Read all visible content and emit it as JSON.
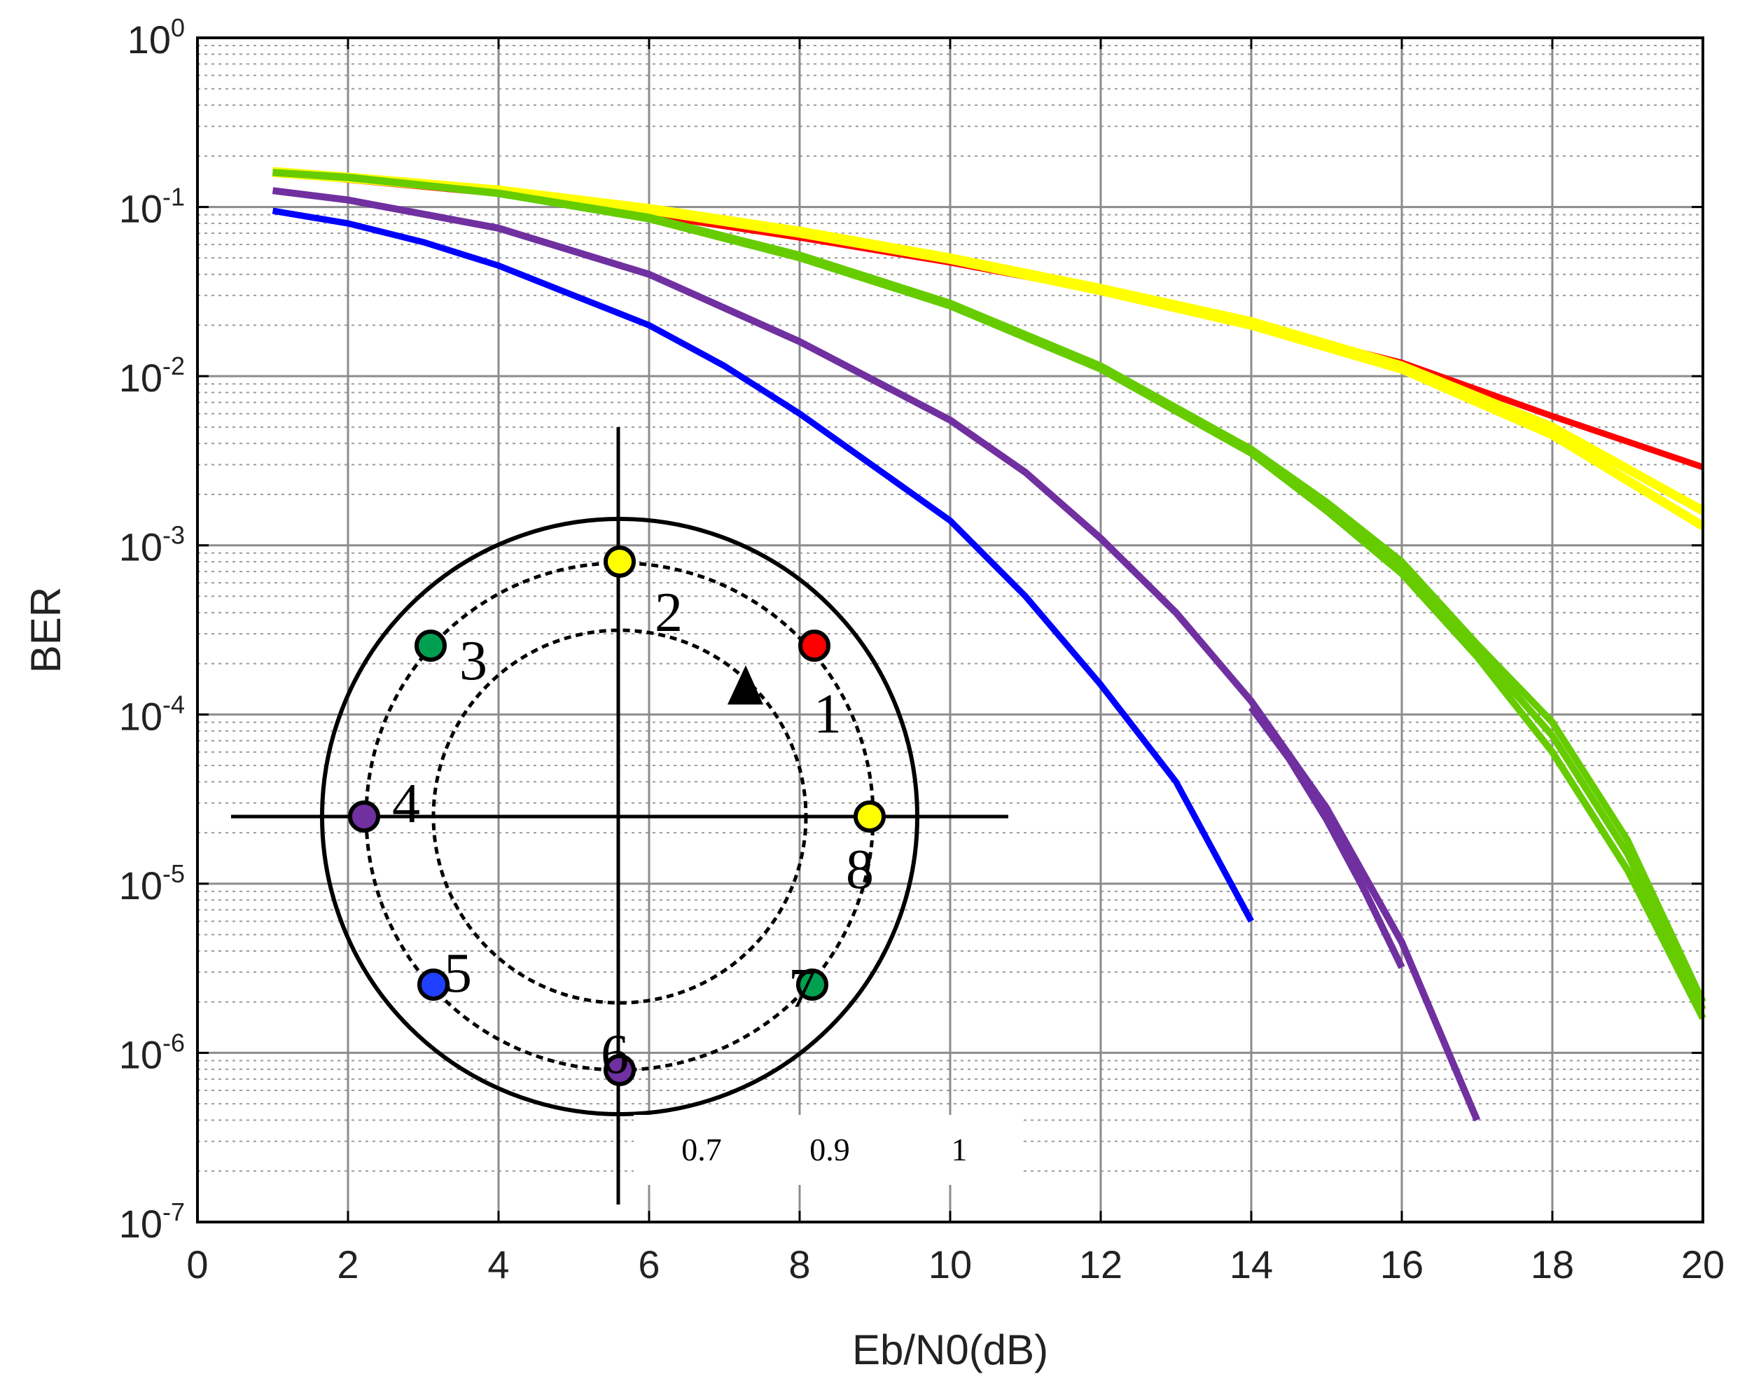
{
  "chart_data": {
    "type": "line",
    "title": "",
    "xlabel": "Eb/N0(dB)",
    "ylabel": "BER",
    "xlim": [
      0,
      20
    ],
    "ylim": [
      1e-07,
      1
    ],
    "yscale": "log",
    "grid": true,
    "minor_grid": true,
    "x_ticks": [
      "0",
      "2",
      "4",
      "6",
      "8",
      "10",
      "12",
      "14",
      "16",
      "18",
      "20"
    ],
    "y_ticks": [
      {
        "base": "10",
        "exp": "0"
      },
      {
        "base": "10",
        "exp": "-1"
      },
      {
        "base": "10",
        "exp": "-2"
      },
      {
        "base": "10",
        "exp": "-3"
      },
      {
        "base": "10",
        "exp": "-4"
      },
      {
        "base": "10",
        "exp": "-5"
      },
      {
        "base": "10",
        "exp": "-6"
      },
      {
        "base": "10",
        "exp": "-7"
      }
    ],
    "series": [
      {
        "color": "#ff0000",
        "width": 9,
        "x": [
          1,
          2,
          4,
          6,
          8,
          10,
          12,
          14,
          16,
          18,
          20
        ],
        "y": [
          0.16,
          0.145,
          0.12,
          0.09,
          0.066,
          0.047,
          0.032,
          0.02,
          0.012,
          0.0058,
          0.0029
        ]
      },
      {
        "color": "#ffff00",
        "width": 13,
        "x": [
          1,
          2,
          4,
          6,
          8,
          10,
          12,
          14,
          16,
          18,
          20
        ],
        "y": [
          0.16,
          0.148,
          0.124,
          0.096,
          0.07,
          0.049,
          0.032,
          0.02,
          0.011,
          0.0045,
          0.0013
        ]
      },
      {
        "color": "#ffff00",
        "width": 13,
        "x": [
          1,
          2,
          4,
          6,
          8,
          10,
          12,
          14,
          16,
          18,
          20
        ],
        "y": [
          0.162,
          0.15,
          0.126,
          0.098,
          0.072,
          0.05,
          0.033,
          0.021,
          0.0115,
          0.005,
          0.0016
        ]
      },
      {
        "color": "#66cc00",
        "width": 10,
        "x": [
          1,
          2,
          4,
          6,
          8,
          10,
          12,
          14,
          15,
          16,
          17,
          18,
          19,
          20
        ],
        "y": [
          0.16,
          0.15,
          0.12,
          0.085,
          0.05,
          0.026,
          0.011,
          0.0035,
          0.0016,
          0.00068,
          0.00022,
          6e-05,
          1.2e-05,
          1.6e-06
        ]
      },
      {
        "color": "#66cc00",
        "width": 10,
        "x": [
          1,
          2,
          4,
          6,
          8,
          10,
          12,
          14,
          15,
          16,
          17,
          18,
          19,
          20
        ],
        "y": [
          0.16,
          0.15,
          0.121,
          0.087,
          0.052,
          0.027,
          0.0115,
          0.0037,
          0.0018,
          0.0008,
          0.00026,
          9e-05,
          1.8e-05,
          2e-06
        ]
      },
      {
        "color": "#66cc00",
        "width": 10,
        "x": [
          1,
          2,
          4,
          6,
          8,
          10,
          12,
          14,
          15,
          16,
          17,
          18,
          19,
          20
        ],
        "y": [
          0.16,
          0.149,
          0.12,
          0.086,
          0.051,
          0.026,
          0.0112,
          0.0036,
          0.0017,
          0.00074,
          0.00024,
          7.5e-05,
          1.5e-05,
          1.8e-06
        ]
      },
      {
        "color": "#7030a0",
        "width": 10,
        "x": [
          1,
          2,
          4,
          6,
          8,
          10,
          11,
          12,
          13,
          14,
          15,
          16,
          17
        ],
        "y": [
          0.125,
          0.11,
          0.075,
          0.04,
          0.016,
          0.0055,
          0.0027,
          0.0011,
          0.0004,
          0.00012,
          2.8e-05,
          4.5e-06,
          4e-07
        ]
      },
      {
        "color": "#7030a0",
        "width": 10,
        "x": [
          14,
          14.5,
          15,
          15.5,
          16
        ],
        "y": [
          0.00011,
          5.5e-05,
          2.4e-05,
          9.2e-06,
          3.2e-06
        ]
      },
      {
        "color": "#0000ff",
        "width": 9,
        "x": [
          1,
          2,
          3,
          4,
          5,
          6,
          7,
          8,
          9,
          10,
          11,
          12,
          13,
          14
        ],
        "y": [
          0.095,
          0.08,
          0.062,
          0.045,
          0.03,
          0.02,
          0.0115,
          0.006,
          0.0029,
          0.0014,
          0.0005,
          0.00015,
          4e-05,
          6e-06
        ]
      }
    ],
    "inset": {
      "scale_labels": [
        "0.7",
        "0.9",
        "1"
      ],
      "points": [
        {
          "label": "1",
          "color": "#ff0000"
        },
        {
          "label": "2",
          "color": "#ffff00"
        },
        {
          "label": "3",
          "color": "#00a050"
        },
        {
          "label": "4",
          "color": "#7030a0"
        },
        {
          "label": "5",
          "color": "#2040ff"
        },
        {
          "label": "6",
          "color": "#7030a0"
        },
        {
          "label": "7",
          "color": "#00a050"
        },
        {
          "label": "8",
          "color": "#ffff00"
        }
      ]
    }
  }
}
